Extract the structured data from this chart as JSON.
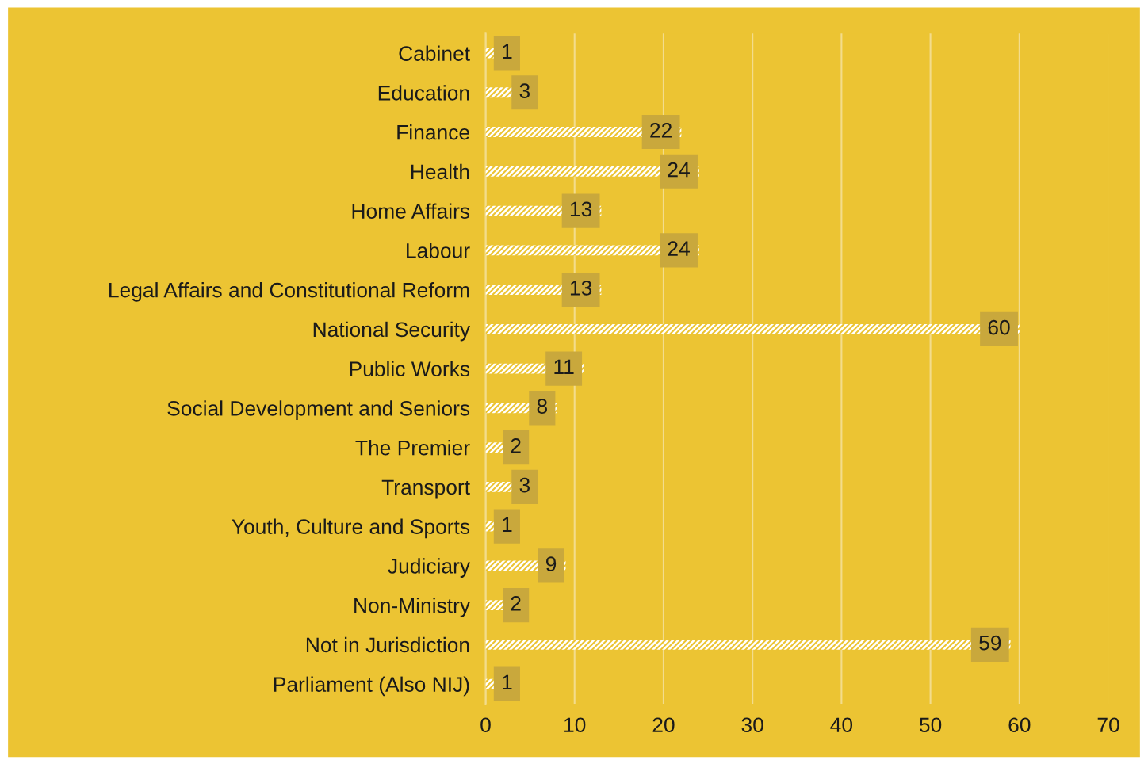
{
  "chart_data": {
    "type": "bar",
    "orientation": "horizontal",
    "categories": [
      "Cabinet",
      "Education",
      "Finance",
      "Health",
      "Home Affairs",
      "Labour",
      "Legal Affairs and Constitutional Reform",
      "National Security",
      "Public Works",
      "Social Development and Seniors",
      "The Premier",
      "Transport",
      "Youth, Culture and Sports",
      "Judiciary",
      "Non-Ministry",
      "Not in Jurisdiction",
      "Parliament (Also NIJ)"
    ],
    "values": [
      1,
      3,
      22,
      24,
      13,
      24,
      13,
      60,
      11,
      8,
      2,
      3,
      1,
      9,
      2,
      59,
      1
    ],
    "color": "#ffffff",
    "xlim": [
      0,
      70
    ],
    "xticks": [
      0,
      10,
      20,
      30,
      40,
      50,
      60,
      70
    ],
    "grid": "x",
    "data_labels": true,
    "legend": false
  }
}
